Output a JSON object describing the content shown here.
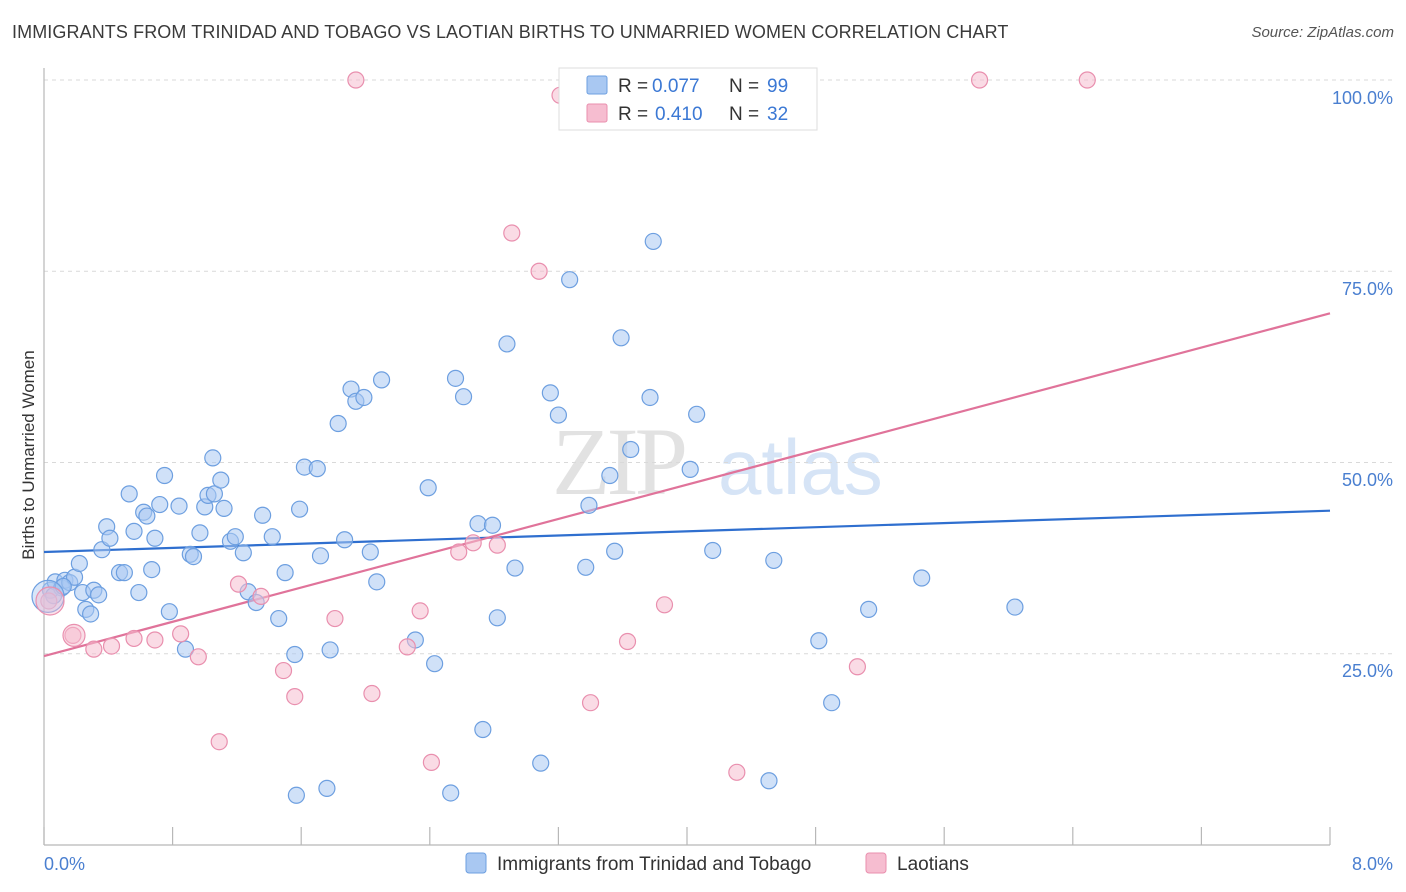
{
  "title": "IMMIGRANTS FROM TRINIDAD AND TOBAGO VS LAOTIAN BIRTHS TO UNMARRIED WOMEN CORRELATION CHART",
  "source": "Source: ZipAtlas.com",
  "watermark": {
    "zip": "ZIP",
    "atlas": "atlas"
  },
  "legend": [
    {
      "r_label": "R =",
      "r_value": "0.077",
      "n_label": "N =",
      "n_value": "99"
    },
    {
      "r_label": "R =",
      "r_value": "0.410",
      "n_label": "N =",
      "n_value": "32"
    }
  ],
  "colors": {
    "blue_fill": "#a9c8f2",
    "blue_stroke": "#6d9fe0",
    "blue_line": "#2f6fcf",
    "pink_fill": "#f6bdd0",
    "pink_stroke": "#e98fae",
    "pink_line": "#e0739a"
  },
  "chart_data": {
    "type": "scatter",
    "xlabel": "",
    "ylabel": "Births to Unmarried Women",
    "xlim": [
      0,
      8
    ],
    "ylim": [
      0,
      100
    ],
    "x_tick_labels": {
      "left": "0.0%",
      "right": "8.0%"
    },
    "y_tick_labels": [
      "100.0%",
      "75.0%",
      "50.0%",
      "25.0%"
    ],
    "y_tick_values": [
      100,
      75,
      50,
      25
    ],
    "grid": true,
    "series": [
      {
        "name": "Immigrants from Trinidad and Tobago",
        "color": "blue",
        "trend": {
          "x": [
            0,
            8
          ],
          "y": [
            38.3,
            43.7
          ]
        },
        "points": [
          [
            0.04,
            33.3
          ],
          [
            0.07,
            34.4
          ],
          [
            0.11,
            33.6
          ],
          [
            0.13,
            34.6
          ],
          [
            0.16,
            34.3
          ],
          [
            0.19,
            35
          ],
          [
            0.22,
            36.8
          ],
          [
            0.24,
            33
          ],
          [
            0.26,
            30.8
          ],
          [
            0.29,
            30.2
          ],
          [
            0.31,
            33.3
          ],
          [
            0.34,
            32.7
          ],
          [
            0.36,
            38.6
          ],
          [
            0.39,
            41.6
          ],
          [
            0.41,
            40.1
          ],
          [
            0.47,
            35.6
          ],
          [
            0.5,
            35.6
          ],
          [
            0.53,
            45.9
          ],
          [
            0.56,
            41
          ],
          [
            0.59,
            33
          ],
          [
            0.62,
            43.5
          ],
          [
            0.64,
            43
          ],
          [
            0.67,
            36
          ],
          [
            0.69,
            40.1
          ],
          [
            0.72,
            44.5
          ],
          [
            0.75,
            48.3
          ],
          [
            0.78,
            30.5
          ],
          [
            0.84,
            44.3
          ],
          [
            0.88,
            25.6
          ],
          [
            0.91,
            38
          ],
          [
            0.93,
            37.7
          ],
          [
            0.97,
            40.8
          ],
          [
            1.0,
            44.2
          ],
          [
            1.02,
            45.7
          ],
          [
            1.05,
            50.6
          ],
          [
            1.06,
            45.9
          ],
          [
            1.1,
            47.7
          ],
          [
            1.12,
            44
          ],
          [
            1.16,
            39.7
          ],
          [
            1.19,
            40.3
          ],
          [
            1.24,
            38.2
          ],
          [
            1.27,
            33.1
          ],
          [
            1.32,
            31.7
          ],
          [
            1.36,
            43.1
          ],
          [
            1.42,
            40.3
          ],
          [
            1.46,
            29.6
          ],
          [
            1.5,
            35.6
          ],
          [
            1.56,
            24.9
          ],
          [
            1.59,
            43.9
          ],
          [
            1.62,
            49.4
          ],
          [
            1.7,
            49.2
          ],
          [
            1.72,
            37.8
          ],
          [
            1.78,
            25.5
          ],
          [
            1.83,
            55.1
          ],
          [
            1.87,
            39.9
          ],
          [
            1.91,
            59.6
          ],
          [
            1.94,
            58
          ],
          [
            1.99,
            58.5
          ],
          [
            2.03,
            38.3
          ],
          [
            2.07,
            34.4
          ],
          [
            2.1,
            60.8
          ],
          [
            2.31,
            26.8
          ],
          [
            2.39,
            46.7
          ],
          [
            2.43,
            23.7
          ],
          [
            2.53,
            6.8
          ],
          [
            2.56,
            61
          ],
          [
            2.61,
            58.6
          ],
          [
            2.7,
            42
          ],
          [
            2.73,
            15.1
          ],
          [
            2.79,
            41.8
          ],
          [
            2.82,
            29.7
          ],
          [
            2.88,
            65.5
          ],
          [
            2.93,
            36.2
          ],
          [
            3.09,
            10.7
          ],
          [
            3.15,
            59.1
          ],
          [
            3.2,
            56.2
          ],
          [
            3.27,
            73.9
          ],
          [
            3.37,
            36.3
          ],
          [
            3.39,
            44.4
          ],
          [
            3.52,
            48.3
          ],
          [
            3.55,
            38.4
          ],
          [
            3.59,
            66.3
          ],
          [
            3.65,
            51.7
          ],
          [
            3.77,
            58.5
          ],
          [
            3.79,
            78.9
          ],
          [
            4.02,
            49.1
          ],
          [
            4.06,
            56.3
          ],
          [
            4.16,
            38.5
          ],
          [
            4.51,
            8.4
          ],
          [
            4.54,
            37.2
          ],
          [
            4.82,
            26.7
          ],
          [
            4.9,
            18.6
          ],
          [
            5.13,
            30.8
          ],
          [
            5.46,
            34.9
          ],
          [
            6.04,
            31.1
          ],
          [
            1.76,
            7.4
          ],
          [
            1.57,
            6.5
          ],
          [
            0.06,
            32.6
          ],
          [
            0.12,
            33.8
          ]
        ]
      },
      {
        "name": "Laotians",
        "color": "pink",
        "trend": {
          "x": [
            0,
            8
          ],
          "y": [
            24.7,
            69.5
          ]
        },
        "points": [
          [
            0.03,
            31.9
          ],
          [
            0.18,
            27.4
          ],
          [
            0.31,
            25.6
          ],
          [
            0.42,
            26
          ],
          [
            0.56,
            27
          ],
          [
            0.69,
            26.8
          ],
          [
            0.85,
            27.6
          ],
          [
            0.96,
            24.6
          ],
          [
            1.09,
            13.5
          ],
          [
            1.21,
            34.1
          ],
          [
            1.35,
            32.5
          ],
          [
            1.49,
            22.8
          ],
          [
            1.56,
            19.4
          ],
          [
            1.81,
            29.6
          ],
          [
            1.94,
            100
          ],
          [
            2.04,
            19.8
          ],
          [
            2.26,
            25.9
          ],
          [
            2.34,
            30.6
          ],
          [
            2.41,
            10.8
          ],
          [
            2.58,
            38.3
          ],
          [
            2.67,
            39.5
          ],
          [
            2.82,
            39.2
          ],
          [
            2.91,
            80
          ],
          [
            3.08,
            75
          ],
          [
            3.21,
            98
          ],
          [
            3.4,
            18.6
          ],
          [
            3.63,
            26.6
          ],
          [
            3.86,
            31.4
          ],
          [
            4.31,
            9.5
          ],
          [
            5.06,
            23.3
          ],
          [
            5.82,
            100
          ],
          [
            6.49,
            100
          ]
        ]
      }
    ]
  },
  "bottom_legend": [
    "Immigrants from Trinidad and Tobago",
    "Laotians"
  ]
}
